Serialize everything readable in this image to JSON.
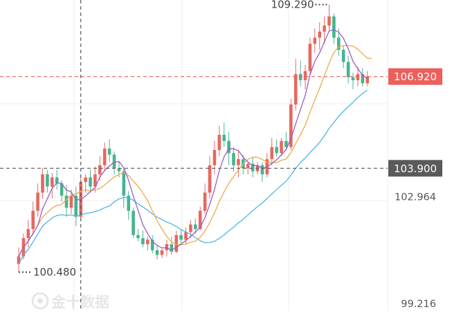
{
  "watermark": {
    "text": "金十数据",
    "logo_icon": "jin10-logo-icon"
  },
  "colors": {
    "up": "#e8675f",
    "down": "#45b48f",
    "ma_short": "#9b59c9",
    "ma_mid": "#f0a94a",
    "ma_long": "#4fb3e6",
    "current_price_line": "#ec5f5a",
    "current_price_badge": "#ec5f5a",
    "crosshair_badge": "#5a5a5a",
    "crosshair_line": "#555555",
    "grid": "#eeeeee",
    "label_text": "#555555"
  },
  "chart_data": {
    "type": "candlestick",
    "y_axis_labels": [
      "102.964",
      "99.216"
    ],
    "ylim": [
      99.216,
      109.6
    ],
    "grid": true,
    "high_annotation": "109.290",
    "low_annotation": "100.480",
    "current_price": {
      "value": 106.92,
      "label": "106.920"
    },
    "crosshair": {
      "value": 103.9,
      "label": "103.900",
      "candle_index": 13
    },
    "ohlc": [
      [
        100.75,
        101.3,
        100.48,
        101.0
      ],
      [
        101.0,
        101.75,
        100.9,
        101.6
      ],
      [
        101.6,
        102.2,
        101.3,
        101.9
      ],
      [
        101.9,
        102.8,
        101.7,
        102.5
      ],
      [
        102.5,
        103.4,
        102.3,
        103.1
      ],
      [
        103.1,
        103.9,
        102.9,
        103.7
      ],
      [
        103.7,
        103.85,
        103.1,
        103.3
      ],
      [
        103.3,
        103.75,
        102.9,
        103.6
      ],
      [
        103.6,
        103.85,
        103.2,
        103.4
      ],
      [
        103.4,
        103.5,
        102.8,
        103.0
      ],
      [
        103.0,
        103.35,
        102.3,
        102.6
      ],
      [
        102.6,
        103.2,
        102.4,
        103.0
      ],
      [
        103.0,
        103.3,
        102.0,
        102.3
      ],
      [
        102.3,
        103.65,
        102.2,
        103.45
      ],
      [
        103.45,
        103.7,
        103.1,
        103.6
      ],
      [
        103.6,
        103.85,
        103.1,
        103.3
      ],
      [
        103.3,
        103.95,
        103.1,
        103.7
      ],
      [
        103.7,
        104.3,
        103.5,
        104.0
      ],
      [
        104.0,
        104.75,
        103.8,
        104.55
      ],
      [
        104.55,
        104.85,
        104.1,
        104.35
      ],
      [
        104.35,
        104.45,
        103.7,
        103.9
      ],
      [
        103.9,
        104.1,
        103.6,
        103.8
      ],
      [
        103.8,
        103.9,
        102.6,
        103.0
      ],
      [
        103.0,
        103.15,
        102.2,
        102.5
      ],
      [
        102.5,
        102.6,
        101.6,
        101.7
      ],
      [
        101.7,
        101.9,
        101.5,
        101.6
      ],
      [
        101.6,
        101.85,
        101.3,
        101.4
      ],
      [
        101.4,
        101.65,
        101.2,
        101.55
      ],
      [
        101.55,
        101.7,
        101.1,
        101.2
      ],
      [
        101.2,
        101.35,
        100.9,
        101.05
      ],
      [
        101.05,
        101.3,
        100.95,
        101.2
      ],
      [
        101.2,
        101.55,
        101.0,
        101.4
      ],
      [
        101.4,
        101.65,
        101.05,
        101.15
      ],
      [
        101.15,
        101.85,
        101.1,
        101.7
      ],
      [
        101.7,
        101.9,
        101.4,
        101.55
      ],
      [
        101.55,
        101.95,
        101.4,
        101.8
      ],
      [
        101.8,
        102.2,
        101.6,
        102.05
      ],
      [
        102.05,
        102.25,
        101.75,
        101.9
      ],
      [
        101.9,
        102.65,
        101.85,
        102.5
      ],
      [
        102.5,
        103.4,
        102.4,
        103.1
      ],
      [
        103.1,
        104.3,
        102.9,
        104.0
      ],
      [
        104.0,
        104.8,
        103.7,
        104.5
      ],
      [
        104.5,
        105.3,
        104.3,
        105.0
      ],
      [
        105.0,
        105.4,
        104.6,
        104.8
      ],
      [
        104.8,
        105.1,
        104.0,
        104.4
      ],
      [
        104.4,
        104.6,
        103.8,
        104.0
      ],
      [
        104.0,
        104.5,
        103.6,
        104.2
      ],
      [
        104.2,
        104.35,
        103.7,
        103.9
      ],
      [
        103.9,
        104.1,
        103.7,
        104.05
      ],
      [
        104.05,
        104.25,
        103.6,
        103.8
      ],
      [
        103.8,
        104.1,
        103.7,
        104.0
      ],
      [
        104.0,
        104.1,
        103.45,
        103.7
      ],
      [
        103.7,
        104.4,
        103.6,
        104.2
      ],
      [
        104.2,
        104.9,
        104.0,
        104.6
      ],
      [
        104.6,
        104.85,
        104.3,
        104.4
      ],
      [
        104.4,
        104.9,
        104.3,
        104.8
      ],
      [
        104.8,
        105.1,
        104.5,
        104.6
      ],
      [
        104.6,
        106.2,
        104.5,
        106.0
      ],
      [
        106.0,
        107.5,
        105.8,
        107.0
      ],
      [
        107.0,
        107.45,
        106.6,
        106.8
      ],
      [
        106.8,
        107.3,
        106.5,
        107.1
      ],
      [
        107.1,
        108.2,
        107.0,
        108.0
      ],
      [
        108.0,
        108.5,
        107.7,
        108.2
      ],
      [
        108.2,
        108.7,
        107.8,
        108.4
      ],
      [
        108.4,
        108.9,
        108.0,
        108.6
      ],
      [
        108.6,
        109.29,
        108.4,
        108.9
      ],
      [
        108.9,
        109.0,
        108.0,
        108.2
      ],
      [
        108.2,
        108.5,
        107.6,
        107.8
      ],
      [
        107.8,
        107.95,
        107.2,
        107.4
      ],
      [
        107.4,
        107.6,
        106.7,
        106.9
      ],
      [
        106.9,
        107.05,
        106.5,
        106.8
      ],
      [
        106.8,
        107.25,
        106.6,
        107.0
      ],
      [
        107.0,
        107.2,
        106.6,
        106.7
      ],
      [
        106.7,
        107.1,
        106.6,
        106.92
      ]
    ]
  }
}
